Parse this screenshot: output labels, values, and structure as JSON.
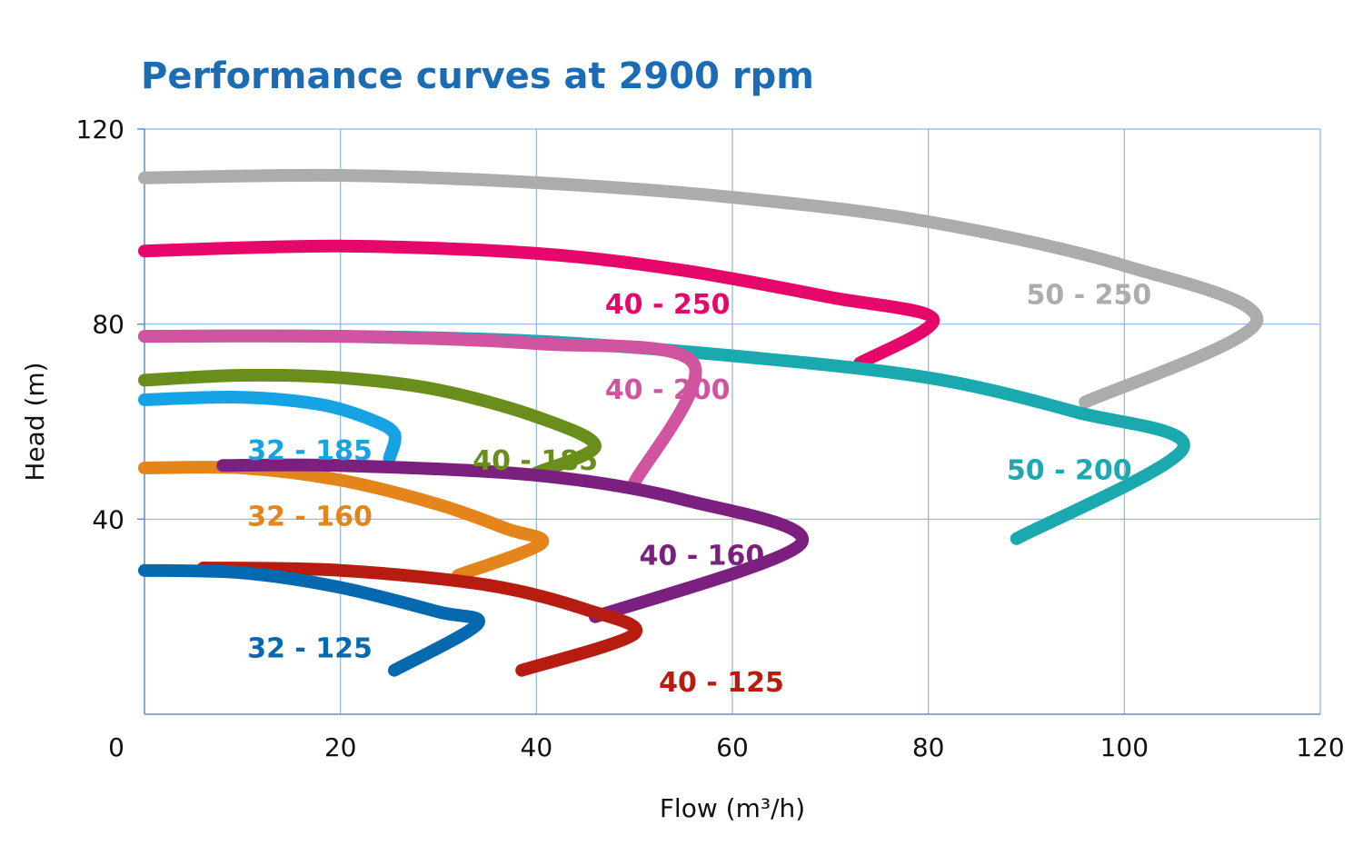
{
  "chart_data": {
    "type": "line",
    "title": "Performance curves at 2900 rpm",
    "xlabel": "Flow (m³/h)",
    "ylabel": "Head (m)",
    "xlim": [
      0,
      120
    ],
    "ylim": [
      0,
      120
    ],
    "xticks": [
      0,
      20,
      40,
      60,
      80,
      100,
      120
    ],
    "yticks": [
      40,
      80,
      120
    ],
    "grid": true,
    "series": [
      {
        "name": "50 - 250",
        "color": "#acacac",
        "label_at": [
          90,
          86
        ],
        "points": [
          [
            0,
            110
          ],
          [
            20,
            110.5
          ],
          [
            40,
            109
          ],
          [
            60,
            106
          ],
          [
            80,
            101
          ],
          [
            100,
            92
          ],
          [
            113.5,
            80.5
          ],
          [
            96,
            64
          ]
        ]
      },
      {
        "name": "40 - 250",
        "color": "#e5086a",
        "label_at": [
          47,
          84
        ],
        "points": [
          [
            0,
            95
          ],
          [
            20,
            96
          ],
          [
            40,
            94.5
          ],
          [
            55,
            91
          ],
          [
            70,
            85.5
          ],
          [
            80.5,
            81
          ],
          [
            73,
            72
          ]
        ]
      },
      {
        "name": "50 - 200",
        "color": "#1ba9b0",
        "label_at": [
          88,
          50
        ],
        "points": [
          [
            0,
            77.5
          ],
          [
            20,
            77.5
          ],
          [
            40,
            76.5
          ],
          [
            60,
            73.5
          ],
          [
            80,
            69
          ],
          [
            95,
            62
          ],
          [
            106,
            54.5
          ],
          [
            89,
            36
          ]
        ]
      },
      {
        "name": "40 - 200",
        "color": "#d0549f",
        "label_at": [
          47,
          66.5
        ],
        "points": [
          [
            0,
            77.5
          ],
          [
            20,
            77.5
          ],
          [
            40,
            76
          ],
          [
            56,
            72
          ],
          [
            50,
            47.5
          ]
        ]
      },
      {
        "name": "40 - 185",
        "color": "#6a8e1b",
        "label_at": [
          33.5,
          52
        ],
        "points": [
          [
            0,
            68.5
          ],
          [
            10,
            69.5
          ],
          [
            20,
            69
          ],
          [
            30,
            66.5
          ],
          [
            40,
            61
          ],
          [
            46,
            55
          ],
          [
            40,
            49.5
          ]
        ]
      },
      {
        "name": "32 - 185",
        "color": "#16a3e3",
        "label_at": [
          10.5,
          54
        ],
        "points": [
          [
            0,
            64.5
          ],
          [
            10,
            65
          ],
          [
            18,
            63.5
          ],
          [
            23,
            60.5
          ],
          [
            25.5,
            57.5
          ],
          [
            25,
            52.5
          ]
        ]
      },
      {
        "name": "32 - 160",
        "color": "#e3851a",
        "label_at": [
          10.5,
          40.5
        ],
        "points": [
          [
            0,
            50.5
          ],
          [
            10,
            50.5
          ],
          [
            20,
            48
          ],
          [
            30,
            43
          ],
          [
            37,
            38
          ],
          [
            40.5,
            35
          ],
          [
            32,
            28.5
          ]
        ]
      },
      {
        "name": "40 - 160",
        "color": "#7b207f",
        "label_at": [
          50.5,
          32.5
        ],
        "points": [
          [
            8,
            51
          ],
          [
            20,
            51
          ],
          [
            40,
            49
          ],
          [
            55,
            44
          ],
          [
            67,
            35
          ],
          [
            46,
            20
          ]
        ]
      },
      {
        "name": "40 - 125",
        "color": "#b61c10",
        "label_at": [
          52.5,
          6.5
        ],
        "points": [
          [
            6,
            30
          ],
          [
            20,
            29.5
          ],
          [
            35,
            26.5
          ],
          [
            45,
            21.5
          ],
          [
            50,
            16.5
          ],
          [
            38.5,
            9
          ]
        ]
      },
      {
        "name": "32 - 125",
        "color": "#0569b0",
        "label_at": [
          10.5,
          13.5
        ],
        "points": [
          [
            0,
            29.5
          ],
          [
            10,
            29
          ],
          [
            20,
            26
          ],
          [
            30,
            21
          ],
          [
            34,
            18.5
          ],
          [
            25.5,
            9
          ]
        ]
      }
    ]
  }
}
